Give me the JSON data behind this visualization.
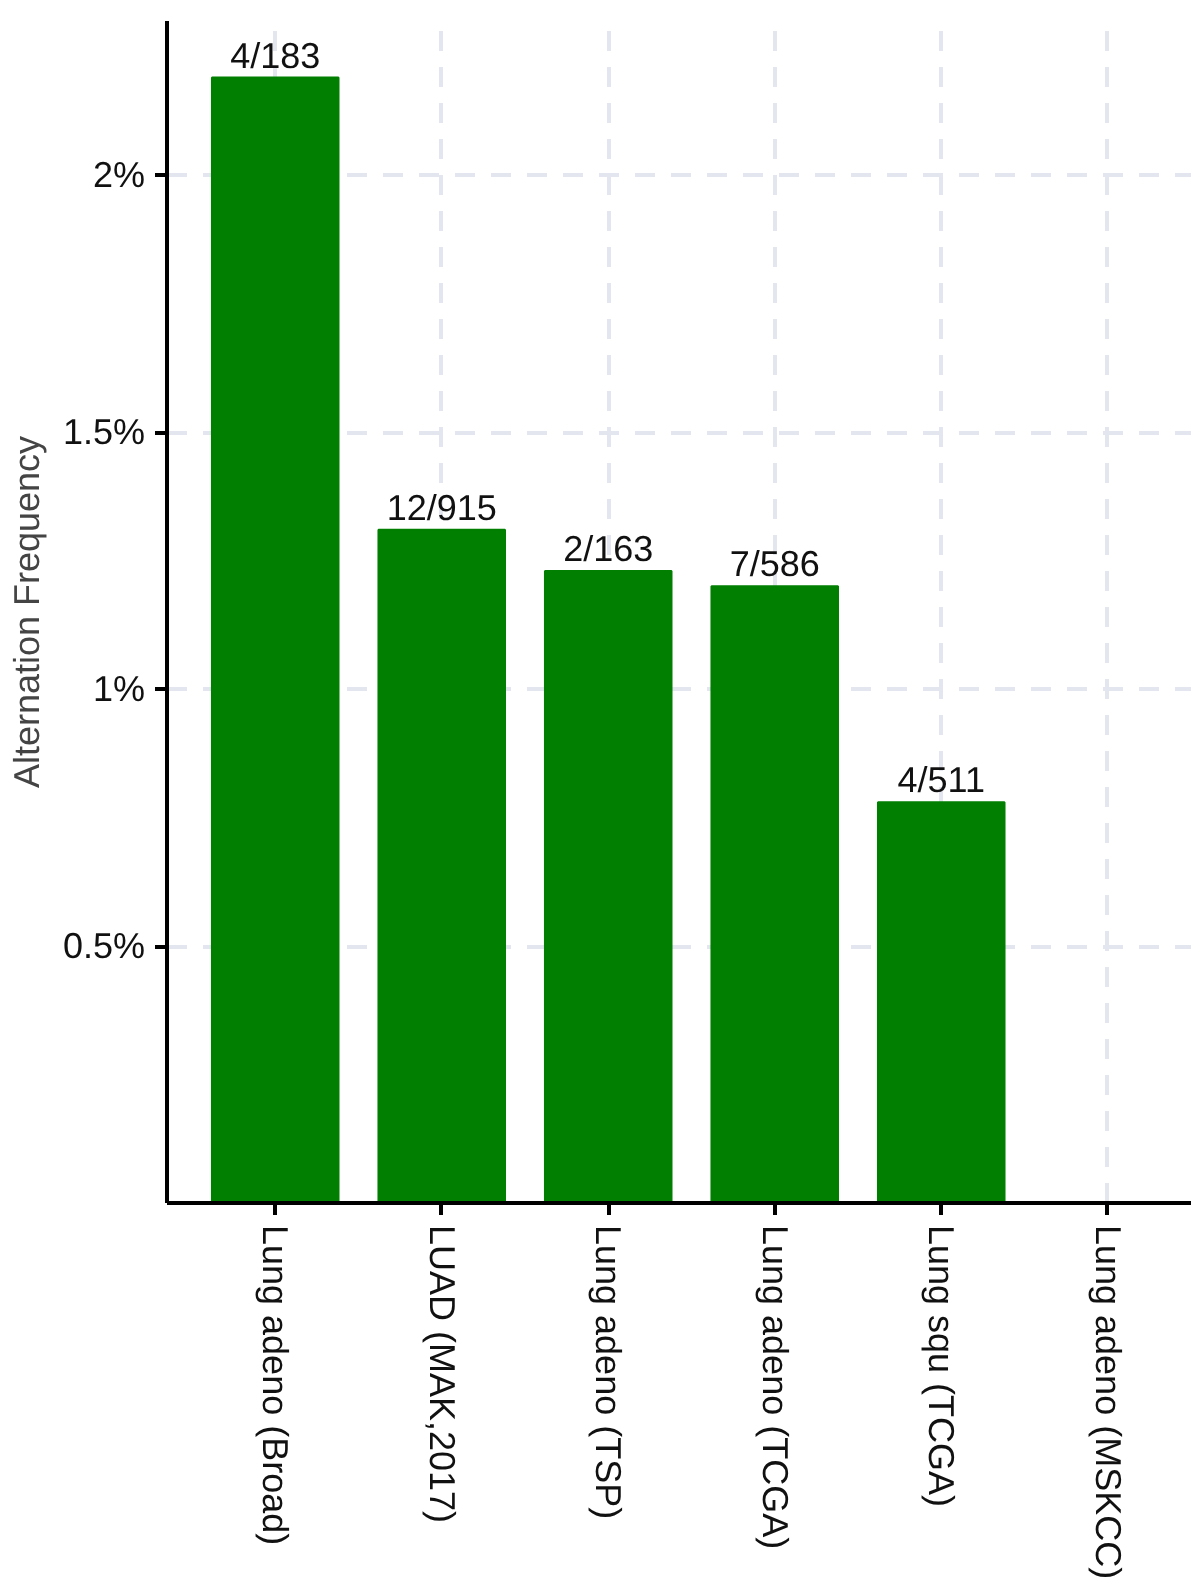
{
  "chart_data": {
    "type": "bar",
    "ylabel": "Alternation Frequency",
    "categories": [
      "Lung adeno (Broad)",
      "LUAD (MAK,2017)",
      "Lung adeno (TSP)",
      "Lung adeno (TCGA)",
      "Lung squ (TCGA)",
      "Lung adeno (MSKCC)"
    ],
    "values": [
      2.19,
      1.31,
      1.23,
      1.2,
      0.78,
      0
    ],
    "value_labels": [
      "4/183",
      "12/915",
      "2/163",
      "7/586",
      "4/511",
      null
    ],
    "color": "#007f00",
    "ylim": [
      0,
      2.3
    ],
    "yticks": [
      {
        "value": 0.5,
        "label": "0.5%"
      },
      {
        "value": 1,
        "label": "1%"
      },
      {
        "value": 1.5,
        "label": "1.5%"
      },
      {
        "value": 2,
        "label": "2%"
      }
    ],
    "grid": true
  }
}
